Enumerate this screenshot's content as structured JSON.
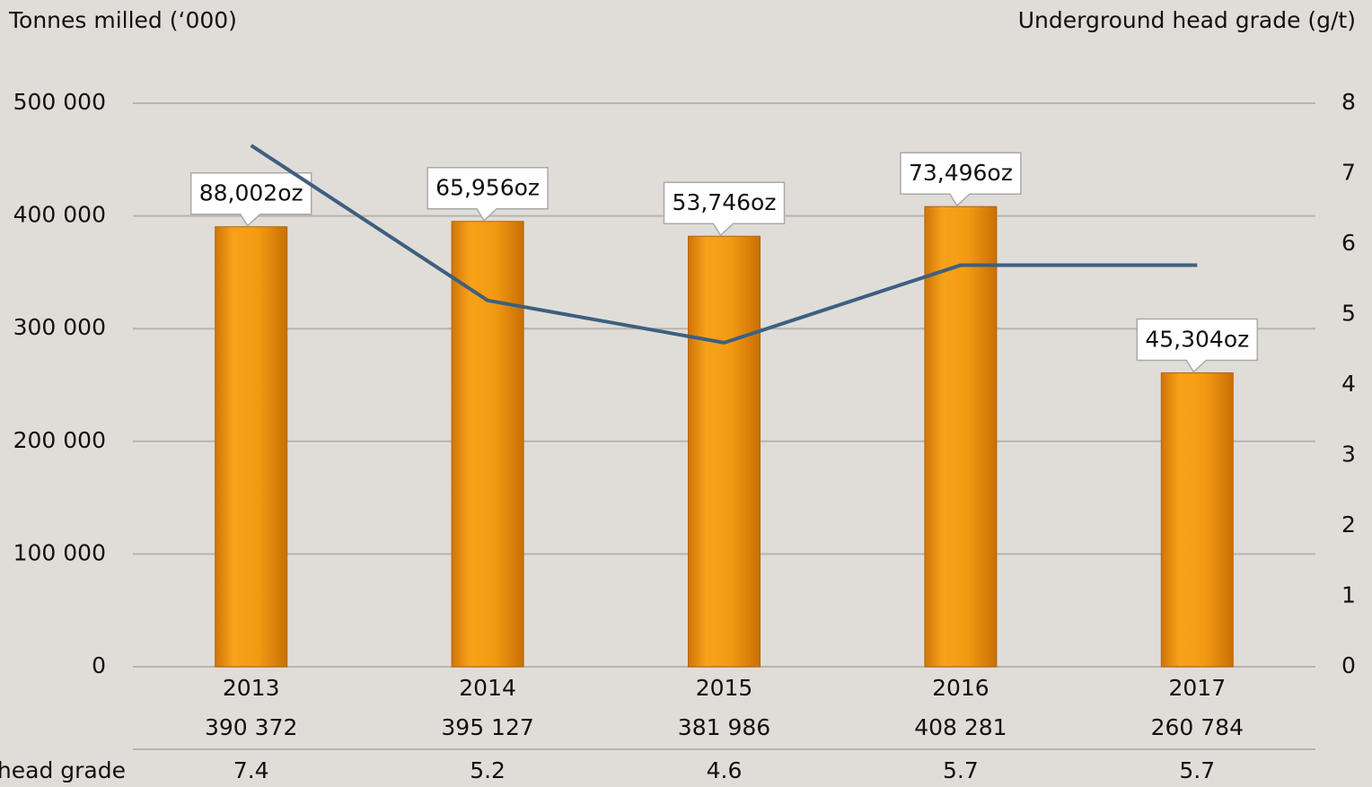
{
  "chart_data": {
    "type": "bar",
    "y_label": "Tonnes milled (‘000)",
    "y2_label": "Underground head grade (g/t)",
    "categories": [
      "2013",
      "2014",
      "2015",
      "2016",
      "2017"
    ],
    "series": [
      {
        "type": "bar",
        "color": "#f29a12",
        "values": [
          390372,
          395127,
          381986,
          408281,
          260784
        ],
        "value_labels": [
          "390 372",
          "395 127",
          "381 986",
          "408 281",
          "260 784"
        ],
        "annotations": [
          "88,002oz",
          "65,956oz",
          "53,746oz",
          "73,496oz",
          "45,304oz"
        ]
      },
      {
        "type": "line",
        "name": "head grade",
        "axis": "y2",
        "color": "#3e5f80",
        "values": [
          7.4,
          5.2,
          4.6,
          5.7,
          5.7
        ]
      }
    ],
    "ylim": [
      0,
      500000
    ],
    "yticks": [
      {
        "value": 0,
        "label": "0"
      },
      {
        "value": 100000,
        "label": "100 000"
      },
      {
        "value": 200000,
        "label": "200 000"
      },
      {
        "value": 300000,
        "label": "300 000"
      },
      {
        "value": 400000,
        "label": "400 000"
      },
      {
        "value": 500000,
        "label": "500 000"
      }
    ],
    "y2lim": [
      0,
      8
    ],
    "y2ticks": [
      0,
      1,
      2,
      3,
      4,
      5,
      6,
      7,
      8
    ],
    "grid": true
  }
}
